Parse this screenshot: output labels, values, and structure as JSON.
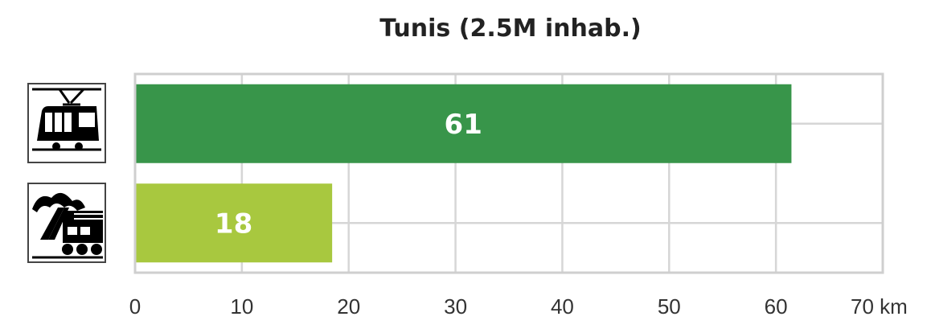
{
  "chart_data": {
    "type": "bar",
    "orientation": "horizontal",
    "title": "Tunis (2.5M inhab.)",
    "categories": [
      "tram-icon",
      "train-icon"
    ],
    "values": [
      61,
      18
    ],
    "data_labels": [
      "61",
      "18"
    ],
    "xlim": [
      0,
      70
    ],
    "xticks": [
      0,
      10,
      20,
      30,
      40,
      50,
      60,
      70
    ],
    "xtick_labels": [
      "0",
      "10",
      "20",
      "30",
      "40",
      "50",
      "60",
      "70 km"
    ],
    "xlabel": "",
    "ylabel": "",
    "grid": true,
    "colors": [
      "#38954a",
      "#a8c83f"
    ]
  }
}
